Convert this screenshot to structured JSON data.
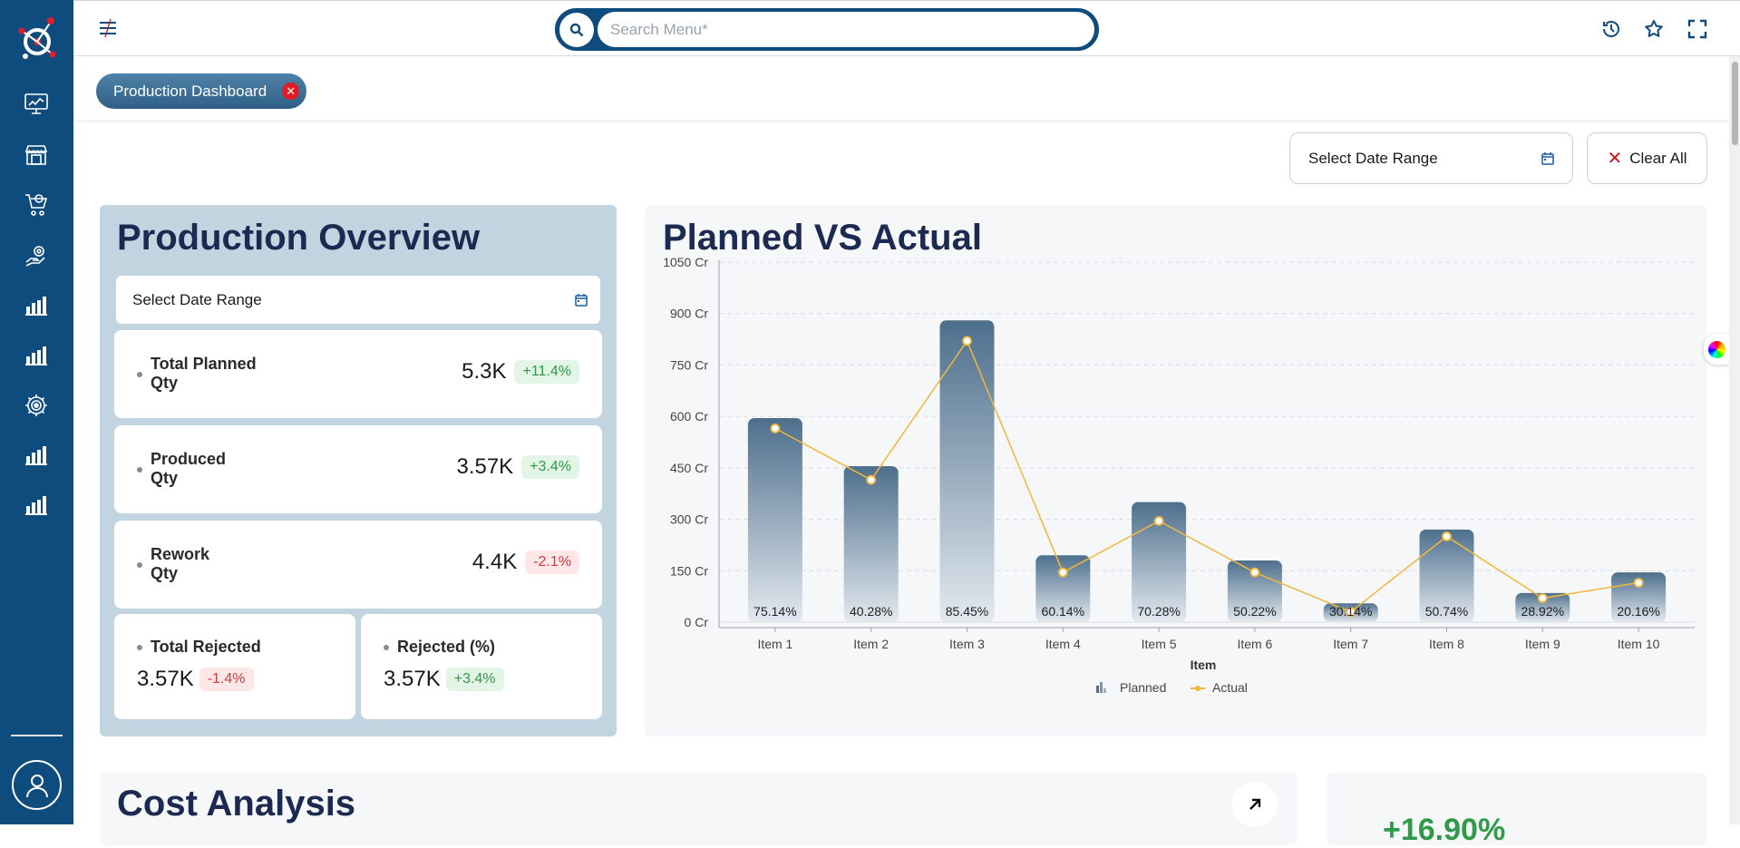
{
  "header": {
    "search_placeholder": "Search Menu*"
  },
  "tabs": [
    {
      "label": "Production Dashboard"
    }
  ],
  "filters": {
    "date_range_label": "Select Date Range",
    "clear_all_label": "Clear All"
  },
  "overview": {
    "title": "Production Overview",
    "date_range_label": "Select Date Range",
    "stats": [
      {
        "label_line1": "Total Planned",
        "label_line2": "Qty",
        "value": "5.3K",
        "change": "+11.4%",
        "trend": "up"
      },
      {
        "label_line1": "Produced",
        "label_line2": "Qty",
        "value": "3.57K",
        "change": "+3.4%",
        "trend": "up"
      },
      {
        "label_line1": "Rework",
        "label_line2": "Qty",
        "value": "4.4K",
        "change": "-2.1%",
        "trend": "down"
      }
    ],
    "small_stats": [
      {
        "label": "Total Rejected",
        "value": "3.57K",
        "change": "-1.4%",
        "trend": "down"
      },
      {
        "label": "Rejected (%)",
        "value": "3.57K",
        "change": "+3.4%",
        "trend": "up"
      }
    ]
  },
  "planned_vs_actual": {
    "title": "Planned VS Actual"
  },
  "chart_data": {
    "type": "bar",
    "title": "Planned VS Actual",
    "xlabel": "Item",
    "ylabel": "",
    "ylim": [
      0,
      1050
    ],
    "y_ticks": [
      "0 Cr",
      "150 Cr",
      "300 Cr",
      "450 Cr",
      "600 Cr",
      "750 Cr",
      "900 Cr",
      "1050 Cr"
    ],
    "y_tick_values": [
      0,
      150,
      300,
      450,
      600,
      750,
      900,
      1050
    ],
    "categories": [
      "Item 1",
      "Item 2",
      "Item 3",
      "Item 4",
      "Item 5",
      "Item 6",
      "Item 7",
      "Item 8",
      "Item 9",
      "Item 10"
    ],
    "series": [
      {
        "name": "Planned",
        "type": "bar",
        "values": [
          595,
          455,
          880,
          195,
          350,
          180,
          55,
          270,
          85,
          145
        ]
      },
      {
        "name": "Actual",
        "type": "line",
        "values": [
          565,
          415,
          820,
          145,
          295,
          145,
          30,
          250,
          70,
          115
        ]
      }
    ],
    "data_labels": [
      "75.14%",
      "40.28%",
      "85.45%",
      "60.14%",
      "70.28%",
      "50.22%",
      "30.14%",
      "50.74%",
      "28.92%",
      "20.16%"
    ],
    "legend": [
      "Planned",
      "Actual"
    ],
    "legend_position": "bottom",
    "grid": true,
    "colors": {
      "bar_top": "#4d6f8c",
      "bar_bottom": "#dce4ec",
      "line": "#f4b63d"
    }
  },
  "cost_analysis": {
    "title": "Cost Analysis"
  },
  "side_card": {
    "value": "+16.90%"
  }
}
